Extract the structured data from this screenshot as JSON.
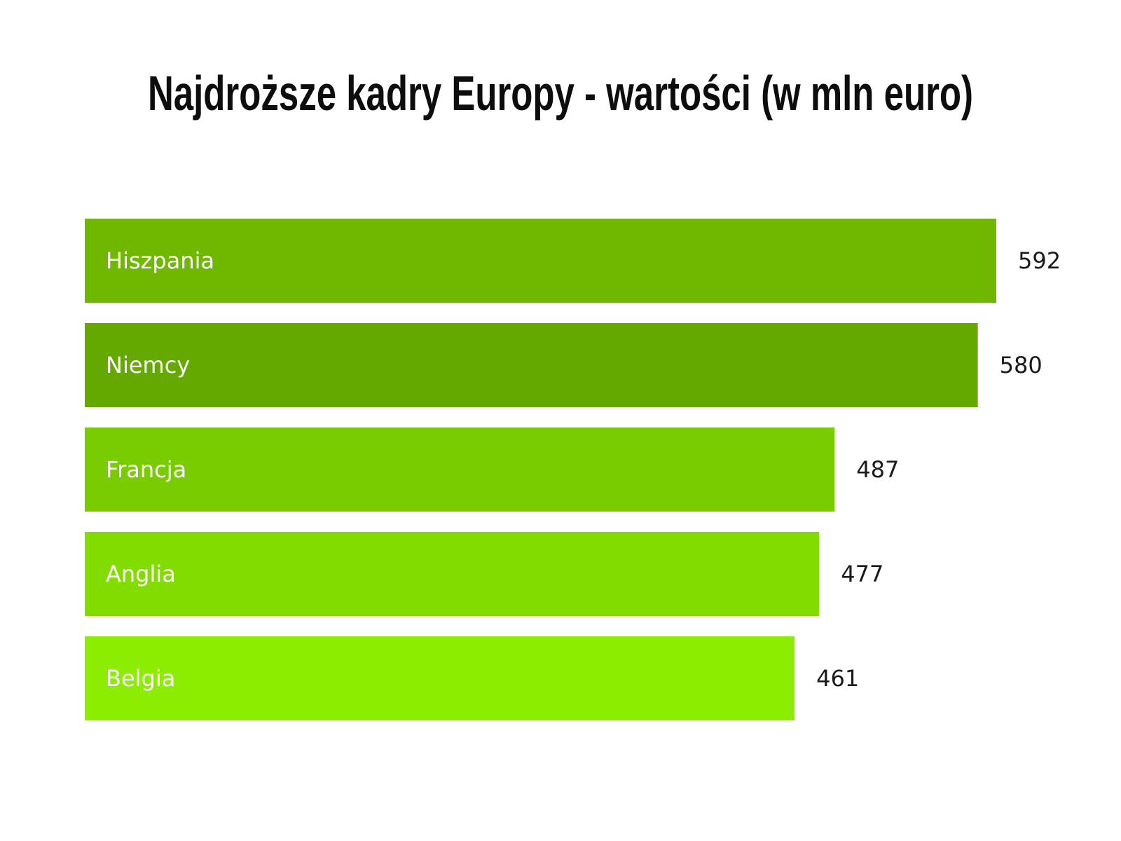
{
  "chart_data": {
    "type": "bar",
    "orientation": "horizontal",
    "title": "Najdroższe kadry Europy - wartości (w mln euro)",
    "categories": [
      "Hiszpania",
      "Niemcy",
      "Francja",
      "Anglia",
      "Belgia"
    ],
    "values": [
      592,
      580,
      487,
      477,
      461
    ],
    "value_labels": [
      "592",
      "580",
      "487",
      "477",
      "461"
    ],
    "bar_colors": [
      "#70b700",
      "#64a800",
      "#78cc00",
      "#82dc00",
      "#8ced00"
    ],
    "xlabel": "",
    "ylabel": "",
    "grid": false,
    "legend": "none"
  }
}
